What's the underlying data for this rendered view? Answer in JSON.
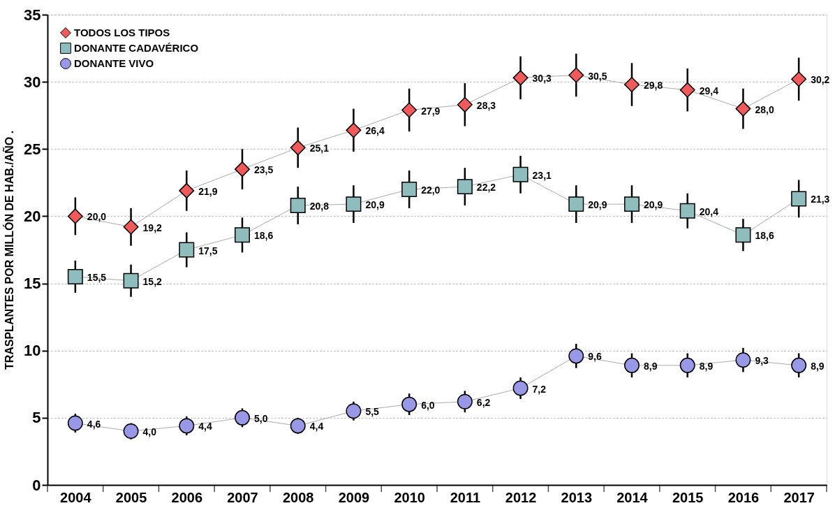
{
  "chart_data": {
    "type": "line",
    "ylabel": "TRASPLANTES POR MILLÓN DE HAB./AÑO .",
    "categories": [
      "2004",
      "2005",
      "2006",
      "2007",
      "2008",
      "2009",
      "2010",
      "2011",
      "2012",
      "2013",
      "2014",
      "2015",
      "2016",
      "2017"
    ],
    "ylim": [
      0,
      35
    ],
    "yticks": [
      0,
      5,
      10,
      15,
      20,
      25,
      30,
      35
    ],
    "grid": "y",
    "legend": "top left",
    "series": [
      {
        "name": "TODOS LOS TIPOS",
        "color": "#f05a5a",
        "marker": "diamond",
        "values": [
          20.0,
          19.2,
          21.9,
          23.5,
          25.1,
          26.4,
          27.9,
          28.3,
          30.3,
          30.5,
          29.8,
          29.4,
          28.0,
          30.2
        ],
        "errors": [
          1.4,
          1.4,
          1.5,
          1.5,
          1.5,
          1.6,
          1.6,
          1.6,
          1.6,
          1.6,
          1.6,
          1.6,
          1.5,
          1.6
        ],
        "value_labels": [
          "20,0",
          "19,2",
          "21,9",
          "23,5",
          "25,1",
          "26,4",
          "27,9",
          "28,3",
          "30,3",
          "30,5",
          "29,8",
          "29,4",
          "28,0",
          "30,2"
        ]
      },
      {
        "name": "DONANTE CADAVÉRICO",
        "color": "#8fbcbc",
        "marker": "square",
        "values": [
          15.5,
          15.2,
          17.5,
          18.6,
          20.8,
          20.9,
          22.0,
          22.2,
          23.1,
          20.9,
          20.9,
          20.4,
          18.6,
          21.3
        ],
        "errors": [
          1.2,
          1.2,
          1.3,
          1.3,
          1.4,
          1.4,
          1.4,
          1.4,
          1.4,
          1.4,
          1.4,
          1.3,
          1.2,
          1.4
        ],
        "value_labels": [
          "15,5",
          "15,2",
          "17,5",
          "18,6",
          "20,8",
          "20,9",
          "22,0",
          "22,2",
          "23,1",
          "20,9",
          "20,9",
          "20,4",
          "18,6",
          "21,3"
        ]
      },
      {
        "name": "DONANTE VIVO",
        "color": "#9898e6",
        "marker": "circle",
        "values": [
          4.6,
          4.0,
          4.4,
          5.0,
          4.4,
          5.5,
          6.0,
          6.2,
          7.2,
          9.6,
          8.9,
          8.9,
          9.3,
          8.9
        ],
        "errors": [
          0.7,
          0.6,
          0.7,
          0.7,
          0.6,
          0.7,
          0.8,
          0.8,
          0.8,
          0.9,
          0.9,
          0.9,
          0.9,
          0.9
        ],
        "value_labels": [
          "4,6",
          "4,0",
          "4,4",
          "5,0",
          "4,4",
          "5,5",
          "6,0",
          "6,2",
          "7,2",
          "9,6",
          "8,9",
          "8,9",
          "9,3",
          "8,9"
        ]
      }
    ]
  }
}
